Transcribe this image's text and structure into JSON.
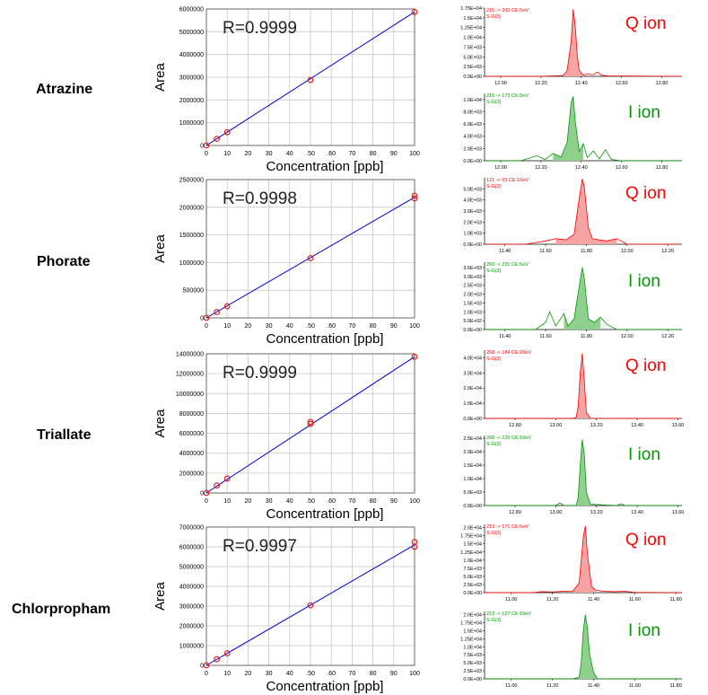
{
  "compounds": [
    "Atrazine",
    "Phorate",
    "Triallate",
    "Chlorpropham"
  ],
  "colors": {
    "fit_line": "#0000cc",
    "point": "#dd2222",
    "q_ion": "#ff0000",
    "i_ion": "#009900",
    "grid": "#c8c8c8"
  },
  "chart_data": [
    {
      "type": "scatter",
      "title": "",
      "xlabel": "Concentration [ppb]",
      "ylabel": "Area",
      "annotation": "R=0.9999",
      "xlim": [
        0,
        100
      ],
      "ylim": [
        0,
        6000000
      ],
      "x_ticks": [
        "0",
        "10",
        "20",
        "30",
        "40",
        ".50",
        ".60",
        "70",
        "80",
        "90",
        "100"
      ],
      "y_ticks": [
        "0",
        "1000000",
        "2000000",
        "3000000",
        "4000000",
        "5000000",
        "6000000"
      ],
      "points": [
        [
          0,
          0
        ],
        [
          5,
          290000
        ],
        [
          10,
          580000
        ],
        [
          50,
          2880000
        ],
        [
          100,
          5870000
        ]
      ],
      "fit": [
        [
          0,
          0
        ],
        [
          100,
          5870000
        ]
      ]
    },
    {
      "type": "scatter",
      "title": "",
      "xlabel": "Concentration [ppb]",
      "ylabel": "Area",
      "annotation": "R=0.9998",
      "xlim": [
        0,
        100
      ],
      "ylim": [
        0,
        2500000
      ],
      "x_ticks": [
        "0",
        "10",
        "20",
        "30",
        "40",
        ".50",
        ".60",
        "70",
        "80",
        "90",
        "100"
      ],
      "y_ticks": [
        "0",
        "500000",
        "1000000",
        "1500000",
        "2000000",
        "2500000"
      ],
      "points": [
        [
          0,
          0
        ],
        [
          5,
          105000
        ],
        [
          10,
          210000
        ],
        [
          50,
          1080000
        ],
        [
          100,
          2160000
        ],
        [
          100,
          2210000
        ]
      ],
      "fit": [
        [
          0,
          0
        ],
        [
          100,
          2180000
        ]
      ]
    },
    {
      "type": "scatter",
      "title": "",
      "xlabel": "Concentration [ppb]",
      "ylabel": "Area",
      "annotation": "R=0.9999",
      "xlim": [
        0,
        100
      ],
      "ylim": [
        0,
        14000000
      ],
      "x_ticks": [
        "0",
        "10",
        "20",
        "30",
        "40",
        ".50",
        ".60",
        "70",
        "80",
        "90",
        "100"
      ],
      "y_ticks": [
        "0",
        "2000000",
        "4000000",
        "6000000",
        "8000000",
        "10000000",
        "12000000",
        "14000000"
      ],
      "points": [
        [
          0,
          0
        ],
        [
          5,
          750000
        ],
        [
          10,
          1450000
        ],
        [
          50,
          6950000
        ],
        [
          50,
          7150000
        ],
        [
          100,
          13700000
        ]
      ],
      "fit": [
        [
          0,
          0
        ],
        [
          100,
          13700000
        ]
      ]
    },
    {
      "type": "scatter",
      "title": "",
      "xlabel": "Concentration [ppb]",
      "ylabel": "Area",
      "annotation": "R=0.9997",
      "xlim": [
        0,
        100
      ],
      "ylim": [
        0,
        7000000
      ],
      "x_ticks": [
        "0",
        "10",
        "20",
        "30",
        "40",
        ".50",
        ".60",
        "70",
        "80",
        "90",
        "100"
      ],
      "y_ticks": [
        "0",
        "1000000",
        "2000000",
        "3000000",
        "4000000",
        "5000000",
        "6000000",
        "7000000"
      ],
      "points": [
        [
          0,
          0
        ],
        [
          5,
          310000
        ],
        [
          10,
          610000
        ],
        [
          50,
          3040000
        ],
        [
          100,
          6000000
        ],
        [
          100,
          6250000
        ]
      ],
      "fit": [
        [
          0,
          0
        ],
        [
          100,
          6100000
        ]
      ]
    },
    {
      "type": "area",
      "ion": "Q ion",
      "trace": "215 -> 200 CE:5eV",
      "segment": "S-G(3)",
      "xlim": [
        11.92,
        12.9
      ],
      "ylim": [
        0,
        17500
      ],
      "x_ticks": [
        "12.00",
        "12.20",
        "12.40",
        "12.60",
        "12.80"
      ],
      "y_ticks": [
        "0.0E+00",
        "2.5E+03",
        "5.0E+03",
        "7.5E+03",
        "1.0E+04",
        "1.25E+04",
        "1.5E+04",
        "1.75E+04"
      ],
      "x": [
        11.92,
        12.2,
        12.31,
        12.33,
        12.35,
        12.36,
        12.37,
        12.38,
        12.39,
        12.41,
        12.43,
        12.46,
        12.48,
        12.5,
        12.53,
        12.9
      ],
      "y": [
        0,
        0,
        200,
        1500,
        9000,
        17200,
        13000,
        5500,
        1500,
        300,
        600,
        400,
        1100,
        300,
        100,
        0
      ]
    },
    {
      "type": "area",
      "ion": "I ion",
      "trace": "215 -> 173 CE:5eV",
      "segment": "S-G(3)",
      "xlim": [
        11.92,
        12.9
      ],
      "ylim": [
        0,
        11000
      ],
      "x_ticks": [
        "12.00",
        "12.20",
        "12.40",
        "12.60",
        "12.80"
      ],
      "y_ticks": [
        "0.0E+00",
        "2.0E+03",
        "4.0E+03",
        "6.0E+03",
        "8.0E+03",
        "1.0E+04"
      ],
      "x": [
        11.92,
        12.1,
        12.18,
        12.22,
        12.26,
        12.3,
        12.33,
        12.35,
        12.36,
        12.37,
        12.39,
        12.41,
        12.43,
        12.46,
        12.49,
        12.52,
        12.55,
        12.6,
        12.9
      ],
      "y": [
        0,
        0,
        800,
        200,
        1200,
        600,
        3000,
        9500,
        10500,
        6500,
        1500,
        2800,
        500,
        1600,
        300,
        1800,
        200,
        0,
        0
      ]
    },
    {
      "type": "area",
      "ion": "Q ion",
      "trace": "121 -> 65 CE:10eV",
      "segment": "S-G(3)",
      "xlim": [
        11.3,
        12.27
      ],
      "ylim": [
        0,
        6000
      ],
      "x_ticks": [
        "11.40",
        "11.60",
        "11.80",
        "12.00",
        "12.20"
      ],
      "y_ticks": [
        "0.0E+00",
        "1.0E+03",
        "2.0E+03",
        "3.0E+03",
        "4.0E+03",
        "5.0E+03"
      ],
      "x": [
        11.3,
        11.5,
        11.6,
        11.65,
        11.7,
        11.74,
        11.76,
        11.78,
        11.79,
        11.81,
        11.83,
        11.86,
        11.9,
        11.95,
        12.0,
        12.27
      ],
      "y": [
        0,
        0,
        300,
        500,
        400,
        900,
        3500,
        5900,
        5200,
        1500,
        500,
        400,
        300,
        500,
        0,
        0
      ]
    },
    {
      "type": "area",
      "ion": "I ion",
      "trace": "260 -> 231 CE:5eV",
      "segment": "S-G(3)",
      "xlim": [
        11.3,
        12.27
      ],
      "ylim": [
        0,
        3800
      ],
      "x_ticks": [
        "11.40",
        "11.60",
        "11.80",
        "12.00",
        "12.20"
      ],
      "y_ticks": [
        "0.0E+00",
        "5.0E+02",
        "1.0E+03",
        "1.5E+03",
        "2.0E+03",
        "2.5E+03",
        "3.0E+03",
        "3.5E+03"
      ],
      "x": [
        11.3,
        11.55,
        11.6,
        11.62,
        11.65,
        11.69,
        11.71,
        11.74,
        11.77,
        11.78,
        11.79,
        11.81,
        11.84,
        11.87,
        11.9,
        11.95,
        12.27
      ],
      "y": [
        0,
        0,
        400,
        1000,
        200,
        900,
        200,
        600,
        2800,
        3500,
        2900,
        600,
        400,
        700,
        300,
        0,
        0
      ]
    },
    {
      "type": "area",
      "ion": "Q ion",
      "trace": "268 -> 184 CE:20eV",
      "segment": "S-G(3)",
      "xlim": [
        12.65,
        13.62
      ],
      "ylim": [
        0,
        45000
      ],
      "x_ticks": [
        "12.80",
        "13.00",
        "13.20",
        "13.40",
        "13.60"
      ],
      "y_ticks": [
        "0.0E+00",
        "1.0E+04",
        "2.0E+04",
        "3.0E+04",
        "4.0E+04"
      ],
      "x": [
        12.65,
        13.08,
        13.1,
        13.11,
        13.12,
        13.13,
        13.14,
        13.15,
        13.17,
        13.62
      ],
      "y": [
        0,
        0,
        500,
        8000,
        30000,
        43000,
        25000,
        4000,
        0,
        0
      ]
    },
    {
      "type": "area",
      "ion": "I ion",
      "trace": "268 -> 226 CE:10eV",
      "segment": "S-G(3)",
      "xlim": [
        12.65,
        13.62
      ],
      "ylim": [
        0,
        26000
      ],
      "x_ticks": [
        "12.80",
        "13.00",
        "13.20",
        "13.40",
        "13.60"
      ],
      "y_ticks": [
        "0.0E+00",
        "5.0E+03",
        "1.0E+04",
        "1.5E+04",
        "2.0E+04",
        "2.5E+04"
      ],
      "x": [
        12.65,
        13.0,
        13.02,
        13.04,
        13.1,
        13.11,
        13.12,
        13.13,
        13.14,
        13.15,
        13.17,
        13.3,
        13.32,
        13.34,
        13.62
      ],
      "y": [
        0,
        0,
        1000,
        0,
        0,
        3000,
        15000,
        24500,
        19000,
        5000,
        500,
        0,
        700,
        0,
        0
      ]
    },
    {
      "type": "area",
      "ion": "Q ion",
      "trace": "213 -> 171 CE:5eV",
      "segment": "S-G(3)",
      "xlim": [
        10.87,
        11.83
      ],
      "ylim": [
        0,
        21000
      ],
      "x_ticks": [
        "11.00",
        "11.20",
        "11.40",
        "11.60",
        "11.80"
      ],
      "y_ticks": [
        "0.0E+00",
        "2.5E+03",
        "5.0E+03",
        "7.5E+03",
        "1.0E+04",
        "1.25E+04",
        "1.5E+04",
        "1.75E+04",
        "2.0E+04"
      ],
      "x": [
        10.87,
        11.1,
        11.15,
        11.2,
        11.25,
        11.3,
        11.33,
        11.35,
        11.36,
        11.37,
        11.39,
        11.41,
        11.45,
        11.5,
        11.55,
        11.6,
        11.83
      ],
      "y": [
        0,
        0,
        300,
        200,
        400,
        500,
        3000,
        17000,
        20500,
        12000,
        2000,
        800,
        400,
        300,
        400,
        100,
        0
      ]
    },
    {
      "type": "area",
      "ion": "I ion",
      "trace": "213 -> 127 CE:15eV",
      "segment": "S-G(3)",
      "xlim": [
        10.87,
        11.83
      ],
      "ylim": [
        0,
        21000
      ],
      "x_ticks": [
        "11.00",
        "11.20",
        "11.40",
        "11.60",
        "11.80"
      ],
      "y_ticks": [
        "0.0E+00",
        "2.5E+03",
        "5.0E+03",
        "7.5E+03",
        "1.0E+04",
        "1.25E+04",
        "1.5E+04",
        "1.75E+04",
        "2.0E+04"
      ],
      "x": [
        10.87,
        11.3,
        11.33,
        11.34,
        11.35,
        11.36,
        11.37,
        11.38,
        11.4,
        11.42,
        11.83
      ],
      "y": [
        0,
        0,
        500,
        5000,
        15000,
        20000,
        16000,
        8000,
        2000,
        0,
        0
      ]
    }
  ]
}
